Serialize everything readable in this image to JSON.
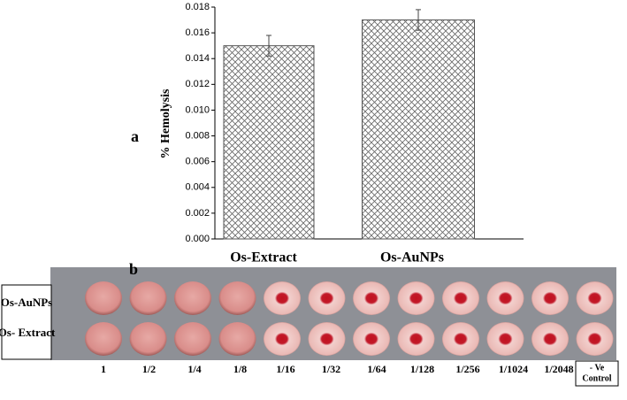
{
  "chart_data": {
    "type": "bar",
    "panel_label": "a",
    "ylabel": "% Hemolysis",
    "categories": [
      "Os-Extract",
      "Os-AuNPs"
    ],
    "values": [
      0.015,
      0.017
    ],
    "errors": [
      0.0008,
      0.0008
    ],
    "color": "#555555",
    "ylim": [
      0,
      0.018
    ],
    "yticks": [
      {
        "value": 0,
        "label": "0.000"
      },
      {
        "value": 0.002,
        "label": "0.002"
      },
      {
        "value": 0.004,
        "label": "0.004"
      },
      {
        "value": 0.006,
        "label": "0.006"
      },
      {
        "value": 0.008,
        "label": "0.008"
      },
      {
        "value": 0.01,
        "label": "0.010"
      },
      {
        "value": 0.012,
        "label": "0.012"
      },
      {
        "value": 0.014,
        "label": "0.014"
      },
      {
        "value": 0.016,
        "label": "0.016"
      },
      {
        "value": 0.018,
        "label": "0.018"
      }
    ]
  },
  "plate": {
    "panel_label": "b",
    "rows": [
      "Os-AuNPs",
      "Os- Extract"
    ],
    "columns": [
      "1",
      "1/2",
      "1/4",
      "1/8",
      "1/16",
      "1/32",
      "1/64",
      "1/128",
      "1/256",
      "1/1024",
      "1/2048"
    ],
    "control": [
      "- Ve",
      "Control"
    ]
  }
}
